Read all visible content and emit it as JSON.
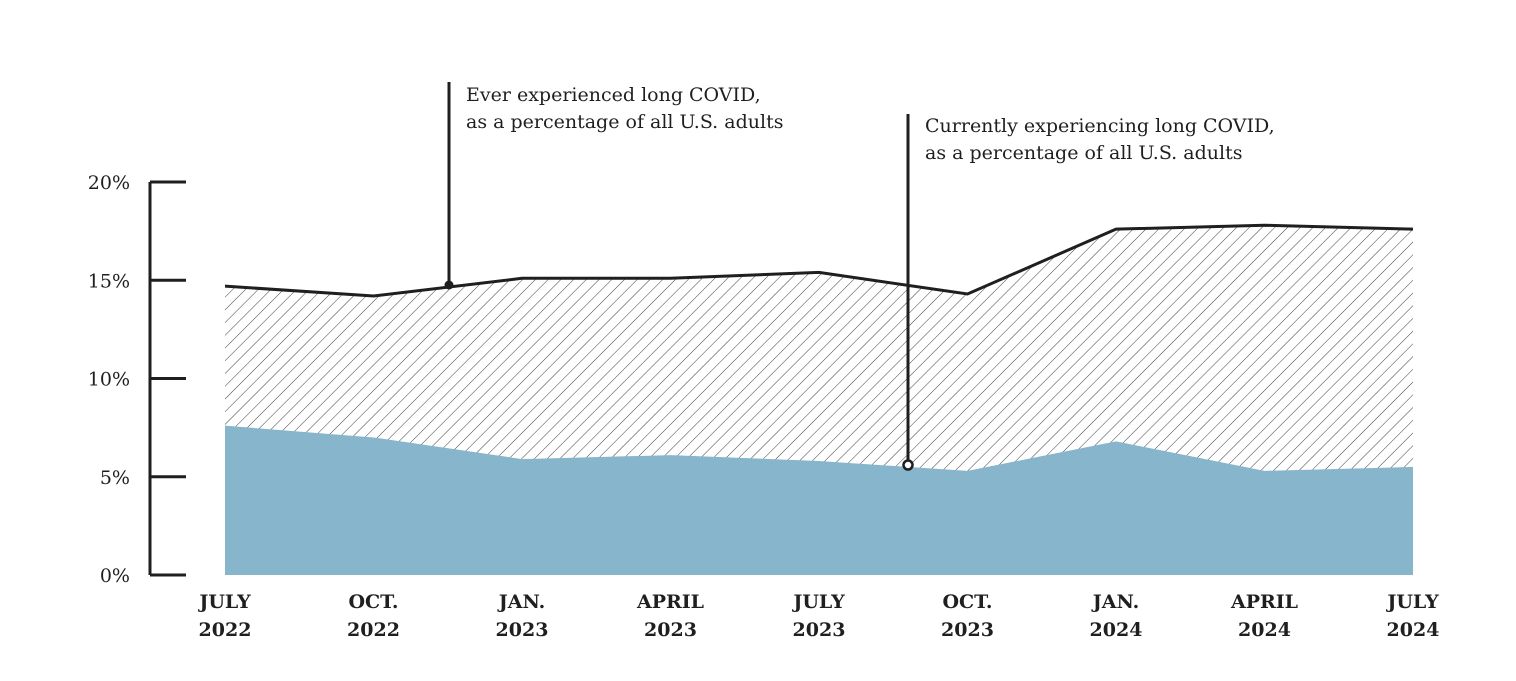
{
  "chart_data": {
    "type": "area",
    "title": "",
    "xlabel": "",
    "ylabel": "",
    "ylim": [
      0,
      20
    ],
    "y_ticks": [
      "0%",
      "5%",
      "10%",
      "15%",
      "20%"
    ],
    "y_tick_values": [
      0,
      5,
      10,
      15,
      20
    ],
    "x": [
      {
        "line1": "JULY",
        "line2": "2022"
      },
      {
        "line1": "OCT.",
        "line2": "2022"
      },
      {
        "line1": "JAN.",
        "line2": "2023"
      },
      {
        "line1": "APRIL",
        "line2": "2023"
      },
      {
        "line1": "JULY",
        "line2": "2023"
      },
      {
        "line1": "OCT.",
        "line2": "2023"
      },
      {
        "line1": "JAN.",
        "line2": "2024"
      },
      {
        "line1": "APRIL",
        "line2": "2024"
      },
      {
        "line1": "JULY",
        "line2": "2024"
      }
    ],
    "series": [
      {
        "values": [
          14.7,
          14.2,
          15.1,
          15.1,
          15.4,
          14.3,
          17.6,
          17.8,
          17.6
        ],
        "style": "hatched area with black line",
        "annotation": [
          "Ever experienced long COVID,",
          "as a percentage of all U.S. adults"
        ]
      },
      {
        "values": [
          7.6,
          7.0,
          5.9,
          6.1,
          5.8,
          5.3,
          6.8,
          5.3,
          5.5
        ],
        "style": "solid fill",
        "color": "#87b5cc",
        "annotation": [
          "Currently experiencing long COVID,",
          "as a percentage of all U.S. adults"
        ]
      }
    ],
    "grid": false,
    "legend": "none (direct annotations)"
  }
}
